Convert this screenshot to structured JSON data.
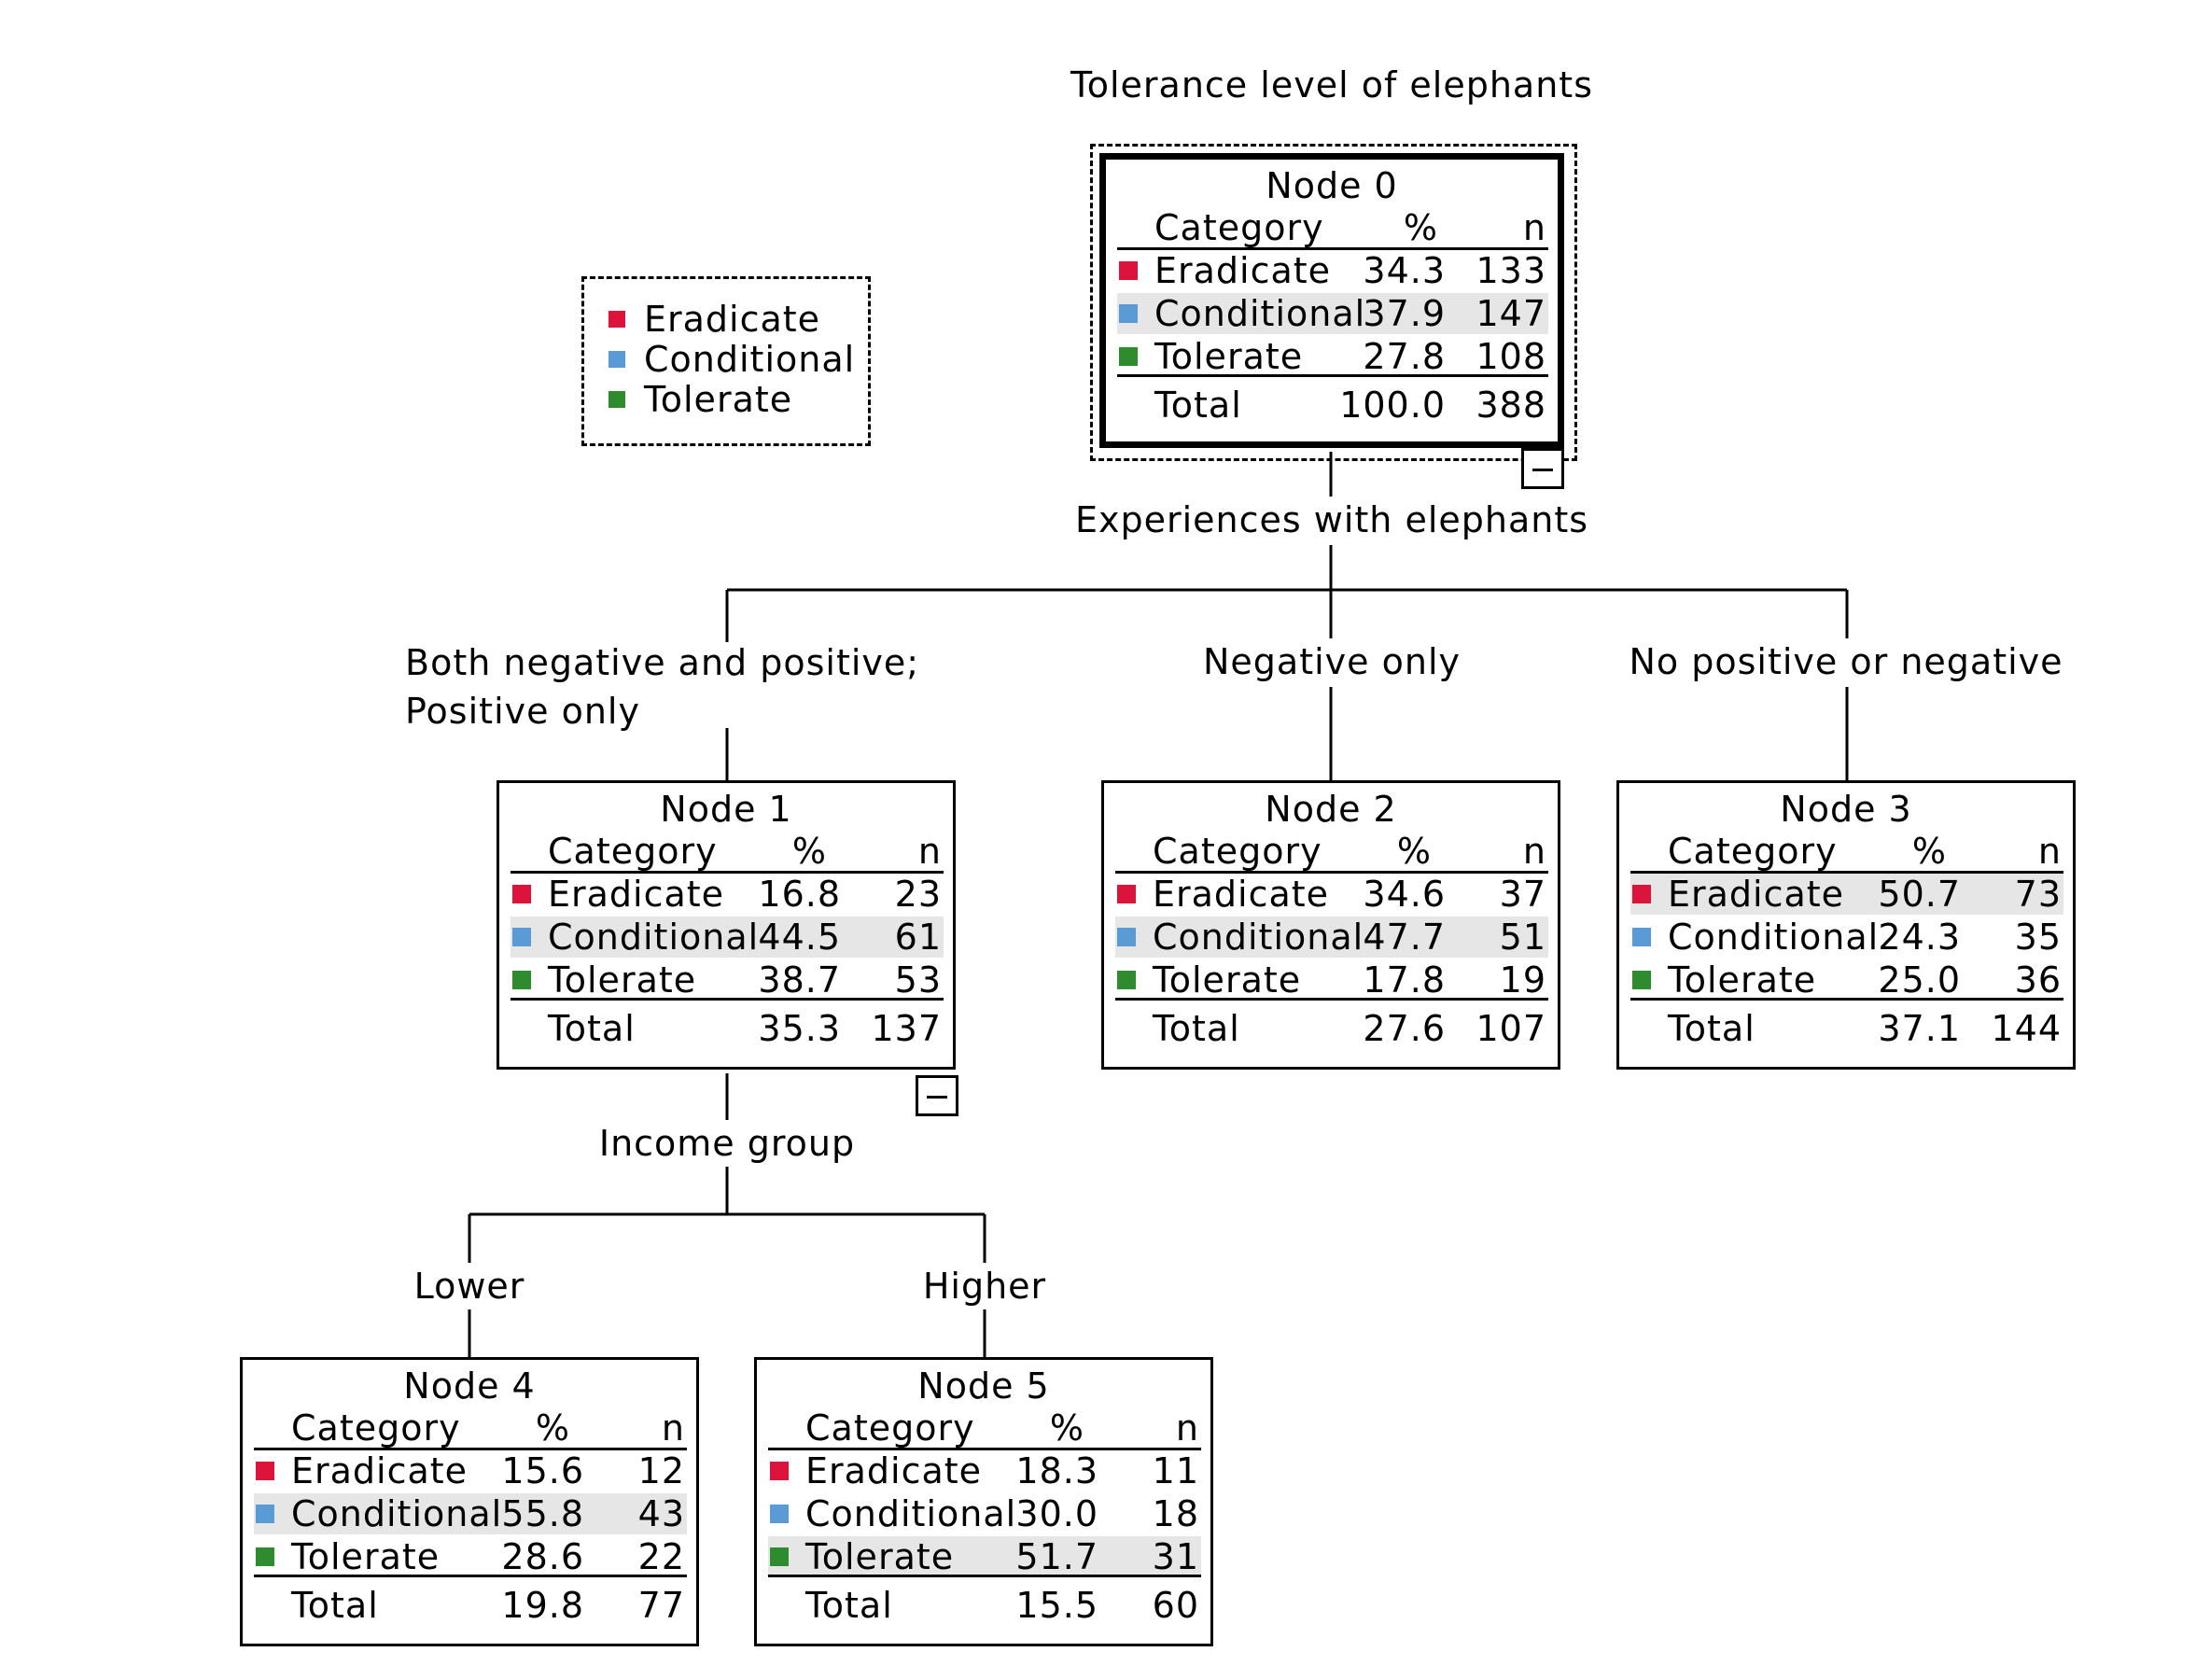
{
  "colors": {
    "eradicate": "#dc143c",
    "conditional": "#5b9bd5",
    "tolerate": "#2e8b2e",
    "highlight": "#e6e6e6"
  },
  "title": "Tolerance level of elephants",
  "legend": [
    {
      "label": "Eradicate",
      "color_key": "eradicate"
    },
    {
      "label": "Conditional",
      "color_key": "conditional"
    },
    {
      "label": "Tolerate",
      "color_key": "tolerate"
    }
  ],
  "table_headers": {
    "category": "Category",
    "percent": "%",
    "n": "n",
    "total": "Total"
  },
  "splits": {
    "root": "Experiences with elephants",
    "node1": "Income group"
  },
  "branches": {
    "node1": "Both negative and positive; Positive only",
    "node2": "Negative only",
    "node3": "No positive or negative",
    "node4": "Lower",
    "node5": "Higher"
  },
  "toggle_symbol": "−",
  "nodes": {
    "n0": {
      "title": "Node 0",
      "highlight": "conditional",
      "rows": [
        {
          "category": "Eradicate",
          "pct": "34.3",
          "n": "133"
        },
        {
          "category": "Conditional",
          "pct": "37.9",
          "n": "147"
        },
        {
          "category": "Tolerate",
          "pct": "27.8",
          "n": "108"
        }
      ],
      "total": {
        "pct": "100.0",
        "n": "388"
      }
    },
    "n1": {
      "title": "Node 1",
      "highlight": "conditional",
      "rows": [
        {
          "category": "Eradicate",
          "pct": "16.8",
          "n": "23"
        },
        {
          "category": "Conditional",
          "pct": "44.5",
          "n": "61"
        },
        {
          "category": "Tolerate",
          "pct": "38.7",
          "n": "53"
        }
      ],
      "total": {
        "pct": "35.3",
        "n": "137"
      }
    },
    "n2": {
      "title": "Node 2",
      "highlight": "conditional",
      "rows": [
        {
          "category": "Eradicate",
          "pct": "34.6",
          "n": "37"
        },
        {
          "category": "Conditional",
          "pct": "47.7",
          "n": "51"
        },
        {
          "category": "Tolerate",
          "pct": "17.8",
          "n": "19"
        }
      ],
      "total": {
        "pct": "27.6",
        "n": "107"
      }
    },
    "n3": {
      "title": "Node 3",
      "highlight": "eradicate",
      "rows": [
        {
          "category": "Eradicate",
          "pct": "50.7",
          "n": "73"
        },
        {
          "category": "Conditional",
          "pct": "24.3",
          "n": "35"
        },
        {
          "category": "Tolerate",
          "pct": "25.0",
          "n": "36"
        }
      ],
      "total": {
        "pct": "37.1",
        "n": "144"
      }
    },
    "n4": {
      "title": "Node 4",
      "highlight": "conditional",
      "rows": [
        {
          "category": "Eradicate",
          "pct": "15.6",
          "n": "12"
        },
        {
          "category": "Conditional",
          "pct": "55.8",
          "n": "43"
        },
        {
          "category": "Tolerate",
          "pct": "28.6",
          "n": "22"
        }
      ],
      "total": {
        "pct": "19.8",
        "n": "77"
      }
    },
    "n5": {
      "title": "Node 5",
      "highlight": "tolerate",
      "rows": [
        {
          "category": "Eradicate",
          "pct": "18.3",
          "n": "11"
        },
        {
          "category": "Conditional",
          "pct": "30.0",
          "n": "18"
        },
        {
          "category": "Tolerate",
          "pct": "51.7",
          "n": "31"
        }
      ],
      "total": {
        "pct": "15.5",
        "n": "60"
      }
    }
  }
}
